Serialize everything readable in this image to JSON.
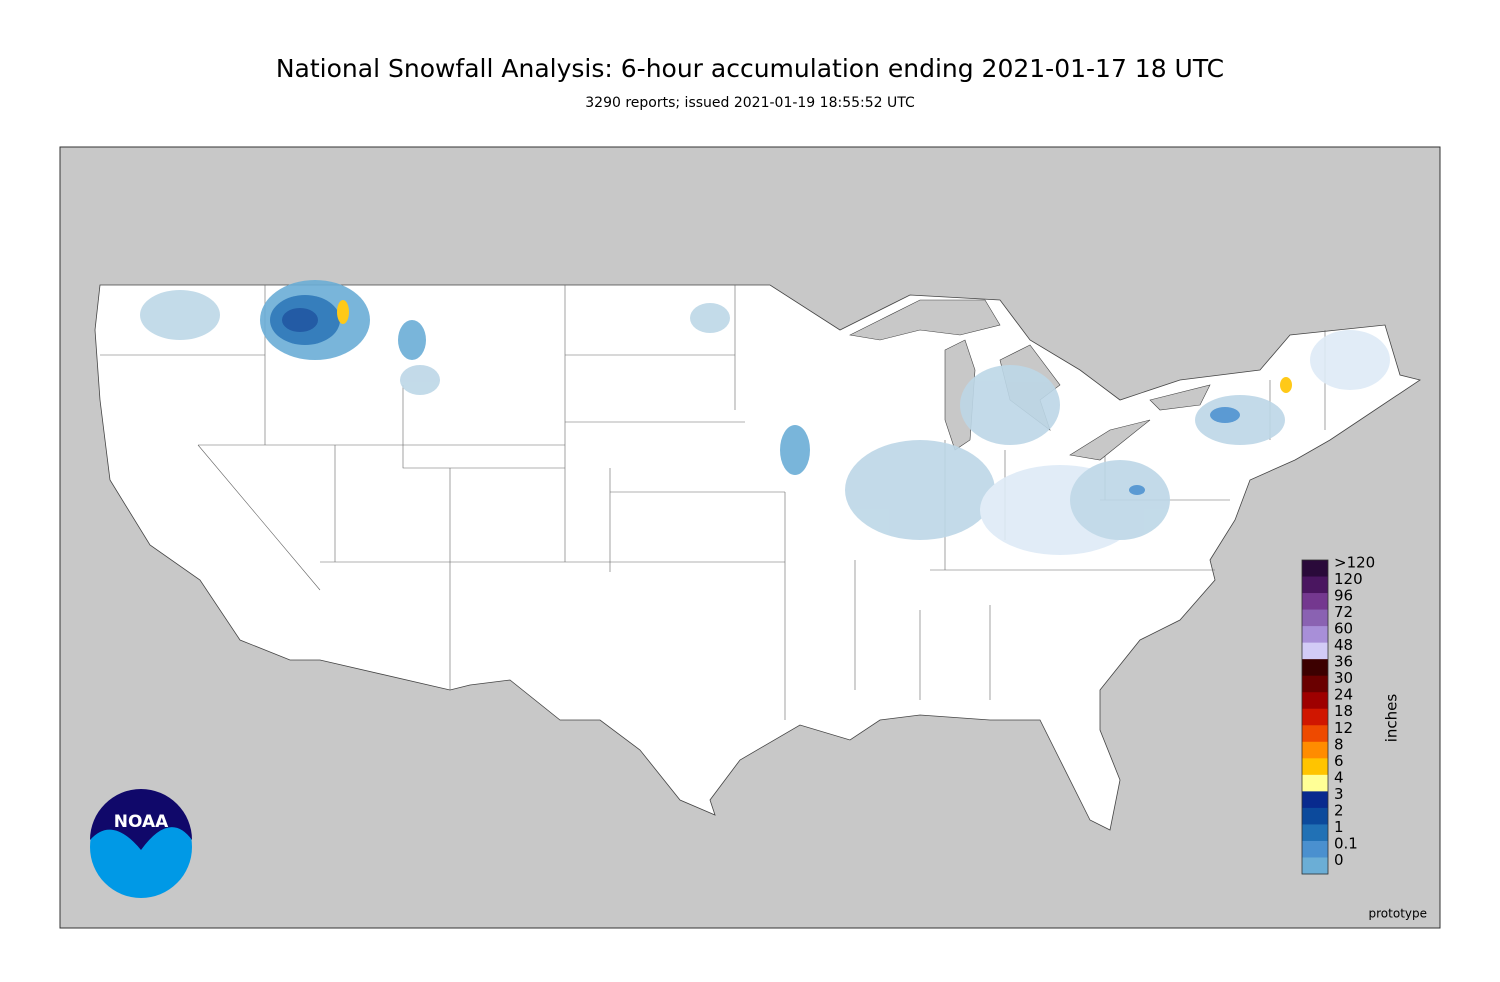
{
  "title": "National Snowfall Analysis: 6-hour accumulation ending 2021-01-17 18 UTC",
  "subtitle": "3290 reports; issued 2021-01-19 18:55:52 UTC",
  "legend": {
    "unit": "inches",
    "items": [
      {
        "label": ">120",
        "color": "#2a0a3a"
      },
      {
        "label": "120",
        "color": "#4a1660"
      },
      {
        "label": "96",
        "color": "#74388f"
      },
      {
        "label": "72",
        "color": "#8a62b2"
      },
      {
        "label": "60",
        "color": "#a88fd8"
      },
      {
        "label": "48",
        "color": "#d2cbf6"
      },
      {
        "label": "36",
        "color": "#3c0000"
      },
      {
        "label": "30",
        "color": "#6a0000"
      },
      {
        "label": "24",
        "color": "#9e0000"
      },
      {
        "label": "18",
        "color": "#d01600"
      },
      {
        "label": "12",
        "color": "#ee4a00"
      },
      {
        "label": "8",
        "color": "#ff8c00"
      },
      {
        "label": "6",
        "color": "#ffc400"
      },
      {
        "label": "4",
        "color": "#ffff96"
      },
      {
        "label": "3",
        "color": "#082a8e"
      },
      {
        "label": "2",
        "color": "#0c4a9c"
      },
      {
        "label": "1",
        "color": "#2171b5"
      },
      {
        "label": "0.1",
        "color": "#4a90cf"
      },
      {
        "label": "0",
        "color": "#6baed6"
      }
    ]
  },
  "note": "prototype",
  "logo": "NOAA"
}
